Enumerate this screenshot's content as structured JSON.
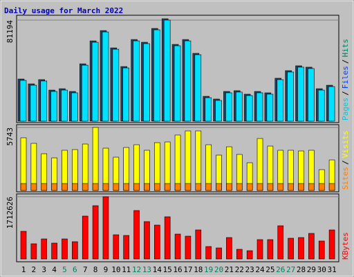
{
  "chart_data": [
    {
      "type": "bar",
      "title": "Daily usage for March 2022",
      "legend": [
        {
          "name": "Pages",
          "color": "#00c8e0"
        },
        {
          "name": "Files",
          "color": "#0040ff"
        },
        {
          "name": "Hits",
          "color": "#008060"
        }
      ],
      "separator": "/",
      "color": "#00e0ff",
      "values": [
        32800,
        28900,
        32300,
        23900,
        25000,
        22800,
        45000,
        63400,
        71700,
        57800,
        42800,
        64500,
        62300,
        73400,
        81194,
        60600,
        64500,
        53400,
        18900,
        16700,
        22800,
        23400,
        20600,
        22800,
        21700,
        33400,
        39500,
        43400,
        42300,
        25000,
        27800
      ],
      "ylim": [
        0,
        81194
      ],
      "yticks": [
        81194
      ]
    },
    {
      "type": "bar",
      "separator": "/",
      "series": [
        {
          "name": "Sites",
          "color": "#ff8000",
          "values": [
            630,
            630,
            630,
            630,
            630,
            630,
            630,
            630,
            630,
            630,
            630,
            630,
            630,
            630,
            630,
            630,
            630,
            630,
            630,
            630,
            630,
            630,
            630,
            630,
            630,
            630,
            630,
            630,
            630,
            630,
            630
          ]
        },
        {
          "name": "Visits",
          "color": "#ffff00",
          "values": [
            4797,
            4291,
            3345,
            2966,
            3660,
            3723,
            4228,
            5743,
            3850,
            3029,
            3913,
            4165,
            3660,
            4354,
            4418,
            5049,
            5427,
            5427,
            4165,
            3219,
            3976,
            3282,
            2524,
            4733,
            4039,
            3660,
            3660,
            3597,
            3660,
            1893,
            2777
          ]
        }
      ],
      "ylim": [
        0,
        5743
      ],
      "yticks": [
        5743
      ]
    },
    {
      "type": "bar",
      "series": [
        {
          "name": "KBytes",
          "color": "#ff0000",
          "values": [
            761167,
            418642,
            551840,
            437671,
            551840,
            475730,
            1179809,
            1465247,
            1712626,
            666021,
            646988,
            1332043,
            1027576,
            932434,
            1160777,
            685051,
            627962,
            799225,
            342525,
            304467,
            589912,
            266409,
            228350,
            532810,
            532810,
            913400,
            570875,
            589912,
            704061,
            494758,
            799225
          ]
        }
      ],
      "ylim": [
        0,
        1712626
      ],
      "yticks": [
        1712626
      ],
      "categories": [
        "1",
        "2",
        "3",
        "4",
        "5",
        "6",
        "7",
        "8",
        "9",
        "10",
        "11",
        "12",
        "13",
        "14",
        "15",
        "16",
        "17",
        "18",
        "19",
        "20",
        "21",
        "22",
        "23",
        "24",
        "25",
        "26",
        "27",
        "28",
        "29",
        "30",
        "31"
      ],
      "category_colors": [
        "#000",
        "#000",
        "#000",
        "#000",
        "#008060",
        "#008060",
        "#000",
        "#000",
        "#000",
        "#000",
        "#000",
        "#008060",
        "#008060",
        "#000",
        "#000",
        "#000",
        "#000",
        "#000",
        "#008060",
        "#008060",
        "#000",
        "#000",
        "#000",
        "#000",
        "#000",
        "#008060",
        "#008060",
        "#000",
        "#000",
        "#000",
        "#000"
      ]
    }
  ]
}
